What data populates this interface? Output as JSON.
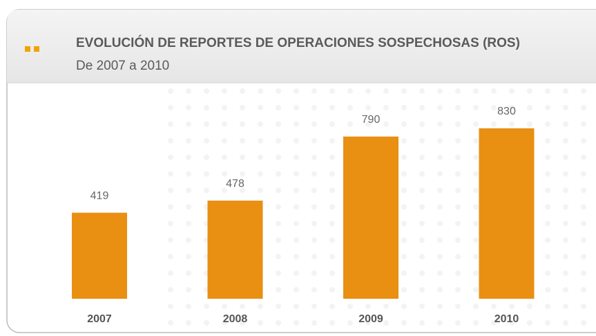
{
  "chart_data": {
    "type": "bar",
    "title": "EVOLUCIÓN DE REPORTES DE OPERACIONES SOSPECHOSAS (ROS)",
    "subtitle": "De 2007 a 2010",
    "categories": [
      "2007",
      "2008",
      "2009",
      "2010"
    ],
    "values": [
      419,
      478,
      790,
      830
    ],
    "color": "#e98f12"
  }
}
